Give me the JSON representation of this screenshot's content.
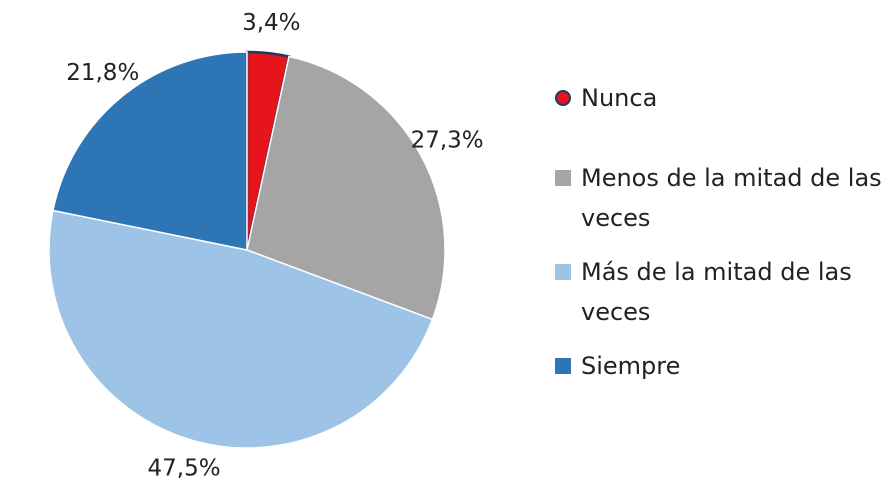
{
  "chart_data": {
    "type": "pie",
    "categories": [
      "Nunca",
      "Menos de la mitad de las veces",
      "Más de la mitad de las veces",
      "Siempre"
    ],
    "values": [
      3.4,
      27.3,
      47.5,
      21.8
    ],
    "value_labels": [
      "3,4%",
      "27,3%",
      "47,5%",
      "21,8%"
    ],
    "colors": [
      "#e8141c",
      "#a5a5a5",
      "#9dc3e6",
      "#2e75b6"
    ],
    "legend": "right"
  }
}
